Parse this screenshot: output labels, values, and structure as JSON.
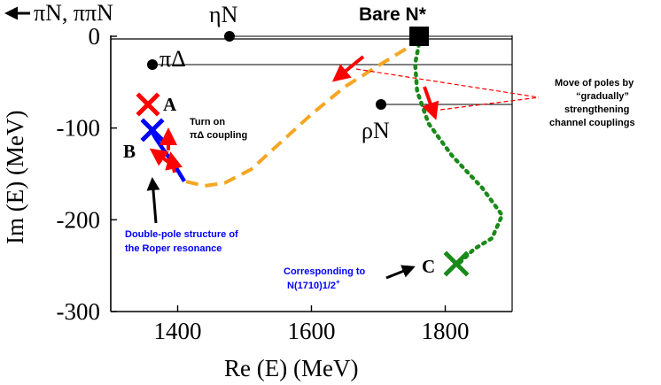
{
  "chart_data": {
    "type": "scatter",
    "xlabel": "Re (E) (MeV)",
    "ylabel": "Im (E) (MeV)",
    "xlim": [
      1300,
      1900
    ],
    "ylim": [
      -300,
      0
    ],
    "x_ticks": [
      1400,
      1600,
      1800
    ],
    "y_ticks": [
      0,
      -100,
      -200,
      -300
    ],
    "grid": false,
    "thresholds": [
      {
        "label": "πN, ππN",
        "re": 1080,
        "im": 0,
        "marker": "arrow-left",
        "off_scale": true
      },
      {
        "label": "ηN",
        "re": 1480,
        "im": 0,
        "marker": "dot"
      },
      {
        "label": "πΔ",
        "re": 1365,
        "im": -32,
        "marker": "dot"
      },
      {
        "label": "ρN",
        "re": 1705,
        "im": -73,
        "marker": "dot"
      }
    ],
    "bare_state": {
      "label": "Bare N*",
      "re": 1763,
      "im": 0,
      "marker": "square",
      "color": "#000000"
    },
    "poles": [
      {
        "label": "A",
        "re": 1357,
        "im": -75,
        "marker": "x",
        "color": "#ff0000"
      },
      {
        "label": "B",
        "re": 1363,
        "im": -102,
        "marker": "x",
        "color": "#0000ff"
      },
      {
        "label": "C",
        "re": 1820,
        "im": -248,
        "marker": "x",
        "color": "#1a8a1a"
      }
    ],
    "series": [
      {
        "style": "dashed",
        "color": "#f5a623",
        "points": [
          [
            1763,
            0
          ],
          [
            1745,
            -12
          ],
          [
            1700,
            -32
          ],
          [
            1650,
            -55
          ],
          [
            1600,
            -85
          ],
          [
            1555,
            -115
          ],
          [
            1510,
            -145
          ],
          [
            1470,
            -160
          ],
          [
            1440,
            -163
          ],
          [
            1410,
            -158
          ]
        ]
      },
      {
        "style": "solid",
        "color": "#0000ff",
        "points": [
          [
            1410,
            -158
          ],
          [
            1395,
            -140
          ],
          [
            1380,
            -125
          ],
          [
            1368,
            -112
          ],
          [
            1360,
            -102
          ]
        ]
      },
      {
        "style": "dotted",
        "color": "#1a8a1a",
        "points": [
          [
            1763,
            0
          ],
          [
            1755,
            -30
          ],
          [
            1758,
            -60
          ],
          [
            1775,
            -95
          ],
          [
            1810,
            -130
          ],
          [
            1855,
            -165
          ],
          [
            1885,
            -195
          ],
          [
            1870,
            -220
          ],
          [
            1843,
            -232
          ],
          [
            1820,
            -248
          ]
        ]
      }
    ],
    "annotations": [
      {
        "text": "Move of poles by “gradually” strengthening channel couplings",
        "color": "#000000"
      },
      {
        "text": "Turn on πΔ coupling",
        "color": "#000000"
      },
      {
        "text": "Double-pole structure of the Roper resonance",
        "color": "#0000ff"
      },
      {
        "text": "Corresponding to N(1710)1/2⁺",
        "color": "#0000ff"
      }
    ]
  },
  "labels": {
    "x_axis_title": "Re (E) (MeV)",
    "y_axis_title": "Im (E) (MeV)",
    "threshold_pin": "πN, ππN",
    "threshold_eta": "ηN",
    "threshold_pidelta": "πΔ",
    "threshold_rho": "ρN",
    "bare": "Bare N*",
    "pole_a": "A",
    "pole_b": "B",
    "pole_c": "C",
    "move_note": [
      "Move of poles by",
      "“gradually”",
      "strengthening",
      "channel couplings"
    ],
    "turn_on_note": [
      "Turn on",
      "πΔ coupling"
    ],
    "roper_note": [
      "Double-pole structure of",
      "the Roper resonance"
    ],
    "n1710_note_line1": "Corresponding to",
    "n1710_note_name": "N(1710)1/2",
    "n1710_note_sup": "+"
  },
  "colors": {
    "axis": "#000000",
    "dashed_track": "#f5a623",
    "dotted_track": "#1a8a1a",
    "blue_track": "#0000ff",
    "arrow_red": "#ff0000",
    "callout_red": "#ff0000"
  }
}
